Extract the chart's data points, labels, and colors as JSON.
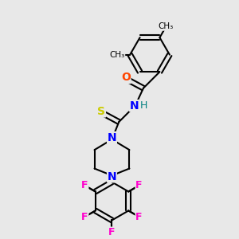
{
  "background_color": "#e8e8e8",
  "bond_color": "#000000",
  "atom_colors": {
    "O": "#ff4500",
    "N": "#0000ff",
    "S": "#cccc00",
    "F": "#ff00cc",
    "H": "#008080",
    "C": "#000000"
  },
  "figsize": [
    3.0,
    3.0
  ],
  "dpi": 100
}
